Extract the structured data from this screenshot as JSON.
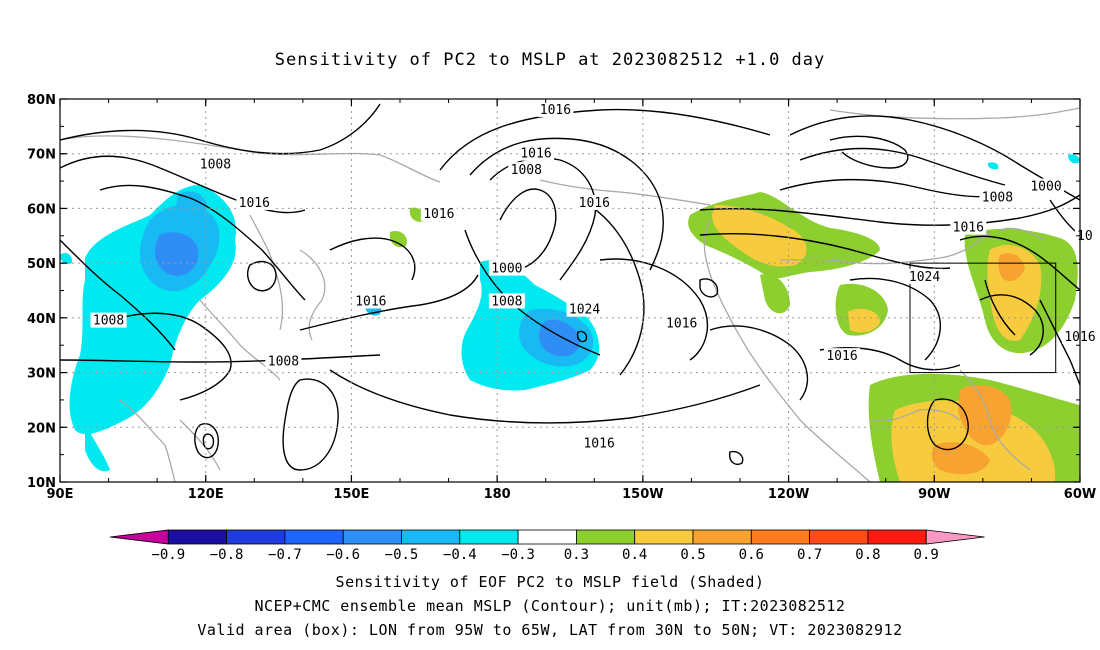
{
  "title": "Sensitivity of PC2 to MSLP at 2023082512 +1.0 day",
  "map": {
    "lon_range": [
      90,
      300
    ],
    "lat_range": [
      10,
      80
    ],
    "lon_ticks": [
      {
        "lon": 90,
        "label": "90E"
      },
      {
        "lon": 120,
        "label": "120E"
      },
      {
        "lon": 150,
        "label": "150E"
      },
      {
        "lon": 180,
        "label": "180"
      },
      {
        "lon": 210,
        "label": "150W"
      },
      {
        "lon": 240,
        "label": "120W"
      },
      {
        "lon": 270,
        "label": "90W"
      },
      {
        "lon": 300,
        "label": "60W"
      }
    ],
    "lat_ticks": [
      {
        "lat": 80,
        "label": "80N"
      },
      {
        "lat": 70,
        "label": "70N"
      },
      {
        "lat": 60,
        "label": "60N"
      },
      {
        "lat": 50,
        "label": "50N"
      },
      {
        "lat": 40,
        "label": "40N"
      },
      {
        "lat": 30,
        "label": "30N"
      },
      {
        "lat": 20,
        "label": "20N"
      },
      {
        "lat": 10,
        "label": "10N"
      }
    ],
    "grid": true,
    "valid_box": {
      "lon": [
        265,
        295
      ],
      "lat": [
        30,
        50
      ]
    },
    "contour_labels": [
      {
        "text": "1008",
        "lon": 122,
        "lat": 68
      },
      {
        "text": "1016",
        "lon": 130,
        "lat": 61
      },
      {
        "text": "1008",
        "lon": 100,
        "lat": 39.5
      },
      {
        "text": "1008",
        "lon": 136,
        "lat": 32
      },
      {
        "text": "1016",
        "lon": 154,
        "lat": 43
      },
      {
        "text": "1016",
        "lon": 168,
        "lat": 59
      },
      {
        "text": "1016",
        "lon": 192,
        "lat": 78
      },
      {
        "text": "1016",
        "lon": 188,
        "lat": 70
      },
      {
        "text": "1008",
        "lon": 186,
        "lat": 67
      },
      {
        "text": "1016",
        "lon": 200,
        "lat": 61
      },
      {
        "text": "1000",
        "lon": 182,
        "lat": 49
      },
      {
        "text": "1008",
        "lon": 182,
        "lat": 43
      },
      {
        "text": "1024",
        "lon": 198,
        "lat": 41.5
      },
      {
        "text": "1016",
        "lon": 218,
        "lat": 39
      },
      {
        "text": "1016",
        "lon": 251,
        "lat": 33
      },
      {
        "text": "1016",
        "lon": 201,
        "lat": 17
      },
      {
        "text": "1008",
        "lon": 283,
        "lat": 62
      },
      {
        "text": "1000",
        "lon": 293,
        "lat": 64
      },
      {
        "text": "1016",
        "lon": 277,
        "lat": 56.5
      },
      {
        "text": "1024",
        "lon": 268,
        "lat": 47.5
      },
      {
        "text": "1016",
        "lon": 300,
        "lat": 36.5
      },
      {
        "text": "10",
        "lon": 301,
        "lat": 55
      }
    ]
  },
  "colorbar": {
    "colors": [
      "#c6009c",
      "#1a0fa0",
      "#1e3ce0",
      "#1e66ff",
      "#2f8ef5",
      "#19baf3",
      "#00e8f0",
      "#ffffff",
      "#8ccf2e",
      "#f7cb3d",
      "#f8a331",
      "#ff7b1f",
      "#ff4b16",
      "#fd1b10",
      "#f799c2"
    ],
    "labels": [
      "−0.9",
      "−0.8",
      "−0.7",
      "−0.6",
      "−0.5",
      "−0.4",
      "−0.3",
      "0.3",
      "0.4",
      "0.5",
      "0.6",
      "0.7",
      "0.8",
      "0.9"
    ]
  },
  "footer": {
    "line1": "Sensitivity of EOF PC2 to MSLP field (Shaded)",
    "line2": "NCEP+CMC ensemble mean MSLP (Contour); unit(mb); IT:2023082512",
    "line3": "Valid area (box): LON from 95W to 65W, LAT from 30N to 50N; VT: 2023082912"
  }
}
